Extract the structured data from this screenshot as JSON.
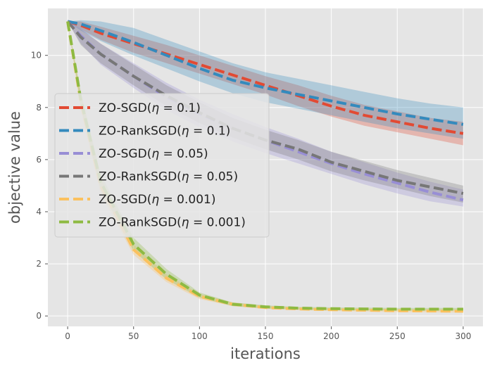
{
  "chart_data": {
    "type": "line",
    "title": "",
    "xlabel": "iterations",
    "ylabel": "objective value",
    "xlim": [
      -15,
      315
    ],
    "ylim": [
      -0.4,
      11.8
    ],
    "xticks": [
      0,
      50,
      100,
      150,
      200,
      250,
      300
    ],
    "yticks": [
      0,
      2,
      4,
      6,
      8,
      10
    ],
    "grid": true,
    "legend_position": "center-left",
    "x": [
      0,
      10,
      25,
      50,
      75,
      100,
      125,
      150,
      175,
      200,
      225,
      250,
      275,
      300
    ],
    "series": [
      {
        "name": "ZO-SGD(η = 0.1)",
        "label_prefix": "ZO-SGD(",
        "label_eta": "η",
        "label_value": " = 0.1)",
        "color": "#E24A33",
        "values": [
          11.3,
          11.15,
          10.85,
          10.45,
          10.05,
          9.65,
          9.25,
          8.85,
          8.45,
          8.05,
          7.7,
          7.45,
          7.2,
          7.0
        ],
        "lower": [
          11.3,
          11.0,
          10.6,
          10.1,
          9.7,
          9.3,
          8.9,
          8.5,
          8.05,
          7.65,
          7.3,
          7.05,
          6.8,
          6.55
        ],
        "upper": [
          11.3,
          11.3,
          11.1,
          10.75,
          10.4,
          10.0,
          9.6,
          9.2,
          8.85,
          8.45,
          8.1,
          7.85,
          7.6,
          7.45
        ]
      },
      {
        "name": "ZO-RankSGD(η = 0.1)",
        "label_prefix": "ZO-RankSGD(",
        "label_eta": "η",
        "label_value": " = 0.1)",
        "color": "#348ABD",
        "values": [
          11.3,
          11.2,
          10.95,
          10.5,
          10.0,
          9.5,
          9.05,
          8.75,
          8.5,
          8.25,
          8.0,
          7.75,
          7.55,
          7.35
        ],
        "lower": [
          11.3,
          10.95,
          10.55,
          10.0,
          9.5,
          9.0,
          8.55,
          8.2,
          7.95,
          7.7,
          7.45,
          7.2,
          7.0,
          6.8
        ],
        "upper": [
          11.3,
          11.35,
          11.3,
          11.05,
          10.6,
          10.15,
          9.7,
          9.35,
          9.1,
          8.85,
          8.6,
          8.35,
          8.15,
          8.0
        ]
      },
      {
        "name": "ZO-SGD(η = 0.05)",
        "label_prefix": "ZO-SGD(",
        "label_eta": "η",
        "label_value": " = 0.05)",
        "color": "#988ED5",
        "values": [
          11.3,
          10.75,
          10.05,
          9.2,
          8.4,
          7.75,
          7.2,
          6.75,
          6.3,
          5.85,
          5.45,
          5.1,
          4.75,
          4.45
        ],
        "lower": [
          11.3,
          10.45,
          9.65,
          8.75,
          7.9,
          7.25,
          6.7,
          6.25,
          5.85,
          5.45,
          5.05,
          4.7,
          4.4,
          4.2
        ],
        "upper": [
          11.3,
          11.05,
          10.45,
          9.7,
          8.95,
          8.3,
          7.75,
          7.25,
          6.8,
          6.3,
          5.9,
          5.5,
          5.15,
          4.85
        ]
      },
      {
        "name": "ZO-RankSGD(η = 0.05)",
        "label_prefix": "ZO-RankSGD(",
        "label_eta": "η",
        "label_value": " = 0.05)",
        "color": "#777777",
        "values": [
          11.3,
          10.7,
          10.05,
          9.2,
          8.45,
          7.8,
          7.2,
          6.75,
          6.4,
          5.9,
          5.55,
          5.2,
          4.95,
          4.7
        ],
        "lower": [
          11.3,
          10.4,
          9.7,
          8.85,
          8.05,
          7.4,
          6.85,
          6.4,
          6.0,
          5.55,
          5.2,
          4.9,
          4.6,
          4.35
        ],
        "upper": [
          11.3,
          11.0,
          10.45,
          9.65,
          8.85,
          8.2,
          7.6,
          7.15,
          6.75,
          6.3,
          5.95,
          5.6,
          5.3,
          5.0
        ]
      },
      {
        "name": "ZO-SGD(η = 0.001)",
        "label_prefix": "ZO-SGD(",
        "label_eta": "η",
        "label_value": " = 0.001)",
        "color": "#FBC15E",
        "values": [
          11.3,
          8.2,
          5.0,
          2.55,
          1.45,
          0.75,
          0.45,
          0.32,
          0.27,
          0.24,
          0.22,
          0.2,
          0.19,
          0.18
        ],
        "lower": [
          11.3,
          7.9,
          4.7,
          2.35,
          1.3,
          0.65,
          0.38,
          0.27,
          0.22,
          0.19,
          0.17,
          0.15,
          0.14,
          0.13
        ],
        "upper": [
          11.3,
          8.5,
          5.3,
          2.75,
          1.6,
          0.85,
          0.52,
          0.38,
          0.32,
          0.29,
          0.27,
          0.25,
          0.24,
          0.23
        ]
      },
      {
        "name": "ZO-RankSGD(η = 0.001)",
        "label_prefix": "ZO-RankSGD(",
        "label_eta": "η",
        "label_value": " = 0.001)",
        "color": "#8EBA42",
        "values": [
          11.3,
          8.3,
          5.15,
          2.75,
          1.6,
          0.8,
          0.45,
          0.35,
          0.3,
          0.28,
          0.27,
          0.26,
          0.26,
          0.26
        ],
        "lower": [
          11.3,
          8.0,
          4.85,
          2.5,
          1.4,
          0.7,
          0.38,
          0.29,
          0.25,
          0.23,
          0.22,
          0.21,
          0.21,
          0.21
        ],
        "upper": [
          11.3,
          8.6,
          5.45,
          3.0,
          1.8,
          0.9,
          0.52,
          0.41,
          0.35,
          0.33,
          0.32,
          0.31,
          0.31,
          0.31
        ]
      }
    ]
  }
}
